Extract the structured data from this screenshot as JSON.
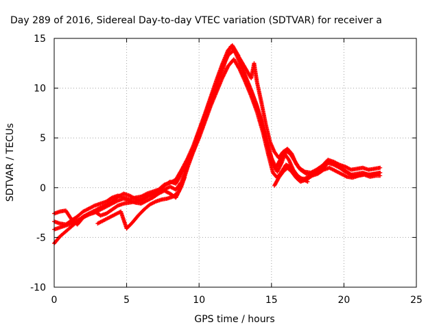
{
  "chart_data": {
    "type": "scatter",
    "title": "Day 289 of 2016, Sidereal Day-to-day VTEC variation (SDTVAR) for receiver a",
    "xlabel": "GPS time / hours",
    "ylabel": "SDTVAR / TECUs",
    "xlim": [
      0,
      25
    ],
    "ylim": [
      -10,
      15
    ],
    "xticks": [
      0,
      5,
      10,
      15,
      20,
      25
    ],
    "yticks": [
      -10,
      -5,
      0,
      5,
      10,
      15
    ],
    "grid": true,
    "marker": "plus",
    "color": "#ff0000",
    "series": [
      {
        "points": [
          [
            0.0,
            -5.6
          ],
          [
            0.4,
            -4.9
          ],
          [
            0.8,
            -4.4
          ],
          [
            1.2,
            -3.9
          ],
          [
            1.6,
            -3.4
          ],
          [
            2.0,
            -2.9
          ],
          [
            2.4,
            -2.6
          ],
          [
            2.8,
            -2.3
          ],
          [
            3.2,
            -2.0
          ],
          [
            3.6,
            -1.7
          ],
          [
            4.0,
            -1.4
          ],
          [
            4.4,
            -0.9
          ],
          [
            4.8,
            -0.6
          ],
          [
            5.2,
            -0.8
          ],
          [
            5.6,
            -1.1
          ],
          [
            6.0,
            -1.3
          ],
          [
            6.4,
            -0.9
          ],
          [
            6.8,
            -0.6
          ],
          [
            7.2,
            -0.3
          ],
          [
            7.6,
            0.2
          ],
          [
            8.0,
            0.6
          ],
          [
            8.4,
            0.4
          ],
          [
            8.8,
            1.5
          ],
          [
            9.2,
            2.6
          ],
          [
            9.6,
            3.6
          ],
          [
            10.0,
            5.2
          ],
          [
            10.4,
            6.8
          ],
          [
            10.8,
            8.6
          ],
          [
            11.2,
            10.1
          ],
          [
            11.6,
            11.8
          ],
          [
            12.0,
            13.5
          ],
          [
            12.2,
            14.2
          ],
          [
            12.5,
            13.6
          ],
          [
            12.8,
            12.6
          ],
          [
            13.2,
            11.2
          ],
          [
            13.6,
            9.8
          ],
          [
            14.0,
            8.2
          ],
          [
            14.4,
            6.0
          ],
          [
            14.8,
            3.8
          ],
          [
            15.1,
            2.4
          ],
          [
            15.4,
            1.6
          ],
          [
            15.7,
            2.5
          ],
          [
            16.0,
            3.7
          ],
          [
            16.3,
            3.4
          ],
          [
            16.6,
            2.7
          ],
          [
            16.9,
            2.0
          ],
          [
            17.3,
            1.6
          ],
          [
            17.7,
            1.5
          ],
          [
            18.1,
            1.8
          ],
          [
            18.5,
            2.2
          ],
          [
            18.9,
            2.8
          ],
          [
            19.3,
            2.6
          ],
          [
            19.7,
            2.3
          ],
          [
            20.1,
            2.1
          ],
          [
            20.5,
            1.8
          ],
          [
            20.9,
            1.9
          ],
          [
            21.3,
            2.0
          ],
          [
            21.7,
            1.8
          ],
          [
            22.1,
            1.9
          ],
          [
            22.5,
            2.0
          ]
        ]
      },
      {
        "points": [
          [
            0.0,
            -4.2
          ],
          [
            0.4,
            -4.0
          ],
          [
            0.8,
            -3.8
          ],
          [
            1.2,
            -3.6
          ],
          [
            1.6,
            -3.3
          ],
          [
            2.0,
            -3.0
          ],
          [
            2.4,
            -2.7
          ],
          [
            2.8,
            -2.5
          ],
          [
            3.2,
            -2.2
          ],
          [
            3.6,
            -1.9
          ],
          [
            4.0,
            -1.6
          ],
          [
            4.4,
            -1.3
          ],
          [
            4.8,
            -1.1
          ],
          [
            5.2,
            -1.3
          ],
          [
            5.6,
            -1.5
          ],
          [
            6.0,
            -1.6
          ],
          [
            6.4,
            -1.3
          ],
          [
            6.8,
            -1.0
          ],
          [
            7.2,
            -0.6
          ],
          [
            7.6,
            -0.3
          ],
          [
            8.0,
            -0.6
          ],
          [
            8.4,
            -1.0
          ],
          [
            8.8,
            0.2
          ],
          [
            9.2,
            2.0
          ],
          [
            9.6,
            3.6
          ],
          [
            10.0,
            5.0
          ],
          [
            10.4,
            6.6
          ],
          [
            10.8,
            8.2
          ],
          [
            11.2,
            9.6
          ],
          [
            11.6,
            11.0
          ],
          [
            12.0,
            12.2
          ],
          [
            12.4,
            12.9
          ],
          [
            12.8,
            11.9
          ],
          [
            13.2,
            10.6
          ],
          [
            13.6,
            9.2
          ],
          [
            14.0,
            7.6
          ],
          [
            14.4,
            5.6
          ],
          [
            14.8,
            3.2
          ],
          [
            15.1,
            1.5
          ],
          [
            15.4,
            1.0
          ],
          [
            15.7,
            1.6
          ],
          [
            16.0,
            2.3
          ],
          [
            16.3,
            2.1
          ],
          [
            16.6,
            1.5
          ],
          [
            16.9,
            0.9
          ],
          [
            17.3,
            0.9
          ],
          [
            17.7,
            1.2
          ],
          [
            18.1,
            1.5
          ],
          [
            18.5,
            1.8
          ],
          [
            18.9,
            2.5
          ],
          [
            19.3,
            2.3
          ],
          [
            19.7,
            2.0
          ],
          [
            20.1,
            1.6
          ],
          [
            20.5,
            1.3
          ],
          [
            20.9,
            1.4
          ],
          [
            21.3,
            1.5
          ],
          [
            21.7,
            1.3
          ],
          [
            22.1,
            1.4
          ],
          [
            22.5,
            1.5
          ]
        ]
      },
      {
        "points": [
          [
            0.0,
            -2.6
          ],
          [
            0.4,
            -2.4
          ],
          [
            0.8,
            -2.3
          ],
          [
            1.2,
            -3.2
          ],
          [
            1.6,
            -3.7
          ],
          [
            2.0,
            -3.0
          ],
          [
            2.4,
            -2.6
          ],
          [
            2.8,
            -2.4
          ],
          [
            3.2,
            -2.8
          ],
          [
            3.6,
            -2.6
          ],
          [
            4.0,
            -2.2
          ],
          [
            4.4,
            -1.8
          ],
          [
            4.8,
            -1.6
          ],
          [
            5.2,
            -1.5
          ],
          [
            5.6,
            -1.4
          ],
          [
            6.0,
            -1.2
          ],
          [
            6.4,
            -0.9
          ],
          [
            6.8,
            -0.7
          ],
          [
            7.2,
            -0.4
          ],
          [
            7.6,
            -0.2
          ],
          [
            8.0,
            0.1
          ],
          [
            8.4,
            -0.2
          ],
          [
            8.8,
            0.6
          ],
          [
            9.2,
            2.2
          ],
          [
            9.6,
            3.9
          ],
          [
            10.0,
            5.6
          ],
          [
            10.4,
            7.2
          ],
          [
            10.8,
            8.9
          ],
          [
            11.2,
            10.4
          ],
          [
            11.6,
            12.0
          ],
          [
            12.0,
            13.3
          ],
          [
            12.4,
            13.8
          ],
          [
            12.8,
            13.0
          ],
          [
            13.2,
            12.0
          ],
          [
            13.6,
            11.0
          ],
          [
            13.8,
            12.5
          ],
          [
            14.0,
            10.6
          ],
          [
            14.3,
            8.6
          ],
          [
            14.6,
            6.4
          ],
          [
            14.9,
            4.6
          ],
          [
            15.2,
            3.6
          ],
          [
            15.5,
            3.0
          ],
          [
            15.8,
            3.6
          ],
          [
            16.1,
            3.9
          ],
          [
            16.4,
            3.4
          ],
          [
            16.7,
            2.4
          ],
          [
            17.0,
            1.8
          ],
          [
            17.4,
            1.4
          ],
          [
            17.8,
            1.3
          ],
          [
            18.2,
            1.6
          ],
          [
            18.6,
            2.1
          ],
          [
            19.0,
            2.6
          ],
          [
            19.4,
            2.4
          ],
          [
            19.8,
            2.0
          ],
          [
            20.2,
            1.6
          ],
          [
            20.6,
            1.2
          ],
          [
            21.0,
            1.2
          ],
          [
            21.4,
            1.3
          ],
          [
            21.8,
            1.1
          ],
          [
            22.2,
            1.2
          ],
          [
            22.5,
            1.2
          ]
        ]
      },
      {
        "points": [
          [
            0.0,
            -3.4
          ],
          [
            0.4,
            -3.6
          ],
          [
            0.8,
            -3.7
          ],
          [
            1.2,
            -3.3
          ],
          [
            1.6,
            -2.9
          ],
          [
            2.0,
            -2.4
          ],
          [
            2.4,
            -2.1
          ],
          [
            2.8,
            -1.8
          ],
          [
            3.2,
            -1.6
          ],
          [
            3.6,
            -1.4
          ],
          [
            4.0,
            -1.0
          ],
          [
            4.4,
            -0.8
          ],
          [
            4.8,
            -1.0
          ],
          [
            5.2,
            -1.2
          ],
          [
            5.6,
            -1.0
          ],
          [
            6.0,
            -0.9
          ],
          [
            6.4,
            -0.6
          ],
          [
            6.8,
            -0.4
          ],
          [
            7.2,
            -0.2
          ],
          [
            7.6,
            0.3
          ],
          [
            8.0,
            0.5
          ],
          [
            8.4,
            0.8
          ],
          [
            8.8,
            1.8
          ],
          [
            9.2,
            2.9
          ],
          [
            9.6,
            4.2
          ],
          [
            10.0,
            5.8
          ],
          [
            10.4,
            7.4
          ],
          [
            10.8,
            9.1
          ],
          [
            11.2,
            10.8
          ],
          [
            11.6,
            12.4
          ],
          [
            12.0,
            13.8
          ],
          [
            12.3,
            14.3
          ],
          [
            12.7,
            13.3
          ],
          [
            13.1,
            11.6
          ],
          [
            13.5,
            10.0
          ],
          [
            13.9,
            8.6
          ],
          [
            14.3,
            6.8
          ],
          [
            14.7,
            4.6
          ],
          [
            15.0,
            3.0
          ],
          [
            15.3,
            2.0
          ],
          [
            15.6,
            2.8
          ],
          [
            15.9,
            3.4
          ],
          [
            16.2,
            2.8
          ],
          [
            16.5,
            1.8
          ],
          [
            16.8,
            1.2
          ],
          [
            17.1,
            0.9
          ],
          [
            17.5,
            0.6
          ]
        ]
      },
      {
        "points": [
          [
            3.0,
            -3.6
          ],
          [
            3.4,
            -3.3
          ],
          [
            3.8,
            -3.0
          ],
          [
            4.2,
            -2.7
          ],
          [
            4.6,
            -2.4
          ],
          [
            5.0,
            -4.1
          ],
          [
            5.4,
            -3.5
          ],
          [
            5.8,
            -2.8
          ],
          [
            6.2,
            -2.2
          ],
          [
            6.6,
            -1.7
          ],
          [
            7.0,
            -1.4
          ],
          [
            7.4,
            -1.2
          ],
          [
            7.8,
            -1.1
          ],
          [
            8.2,
            -0.9
          ],
          [
            8.6,
            -0.4
          ],
          [
            9.0,
            1.0
          ]
        ]
      },
      {
        "points": [
          [
            15.2,
            0.2
          ],
          [
            15.5,
            1.0
          ],
          [
            15.8,
            1.6
          ],
          [
            16.1,
            2.0
          ],
          [
            16.4,
            1.6
          ],
          [
            16.7,
            1.0
          ],
          [
            17.0,
            0.6
          ],
          [
            17.4,
            0.8
          ],
          [
            17.8,
            1.2
          ],
          [
            18.2,
            1.4
          ],
          [
            18.6,
            1.8
          ],
          [
            19.0,
            2.0
          ],
          [
            19.4,
            1.7
          ],
          [
            19.8,
            1.4
          ],
          [
            20.2,
            1.1
          ],
          [
            20.6,
            1.0
          ],
          [
            21.0,
            1.2
          ],
          [
            21.4,
            1.4
          ],
          [
            21.8,
            1.3
          ],
          [
            22.2,
            1.4
          ],
          [
            22.5,
            1.5
          ]
        ]
      }
    ]
  }
}
